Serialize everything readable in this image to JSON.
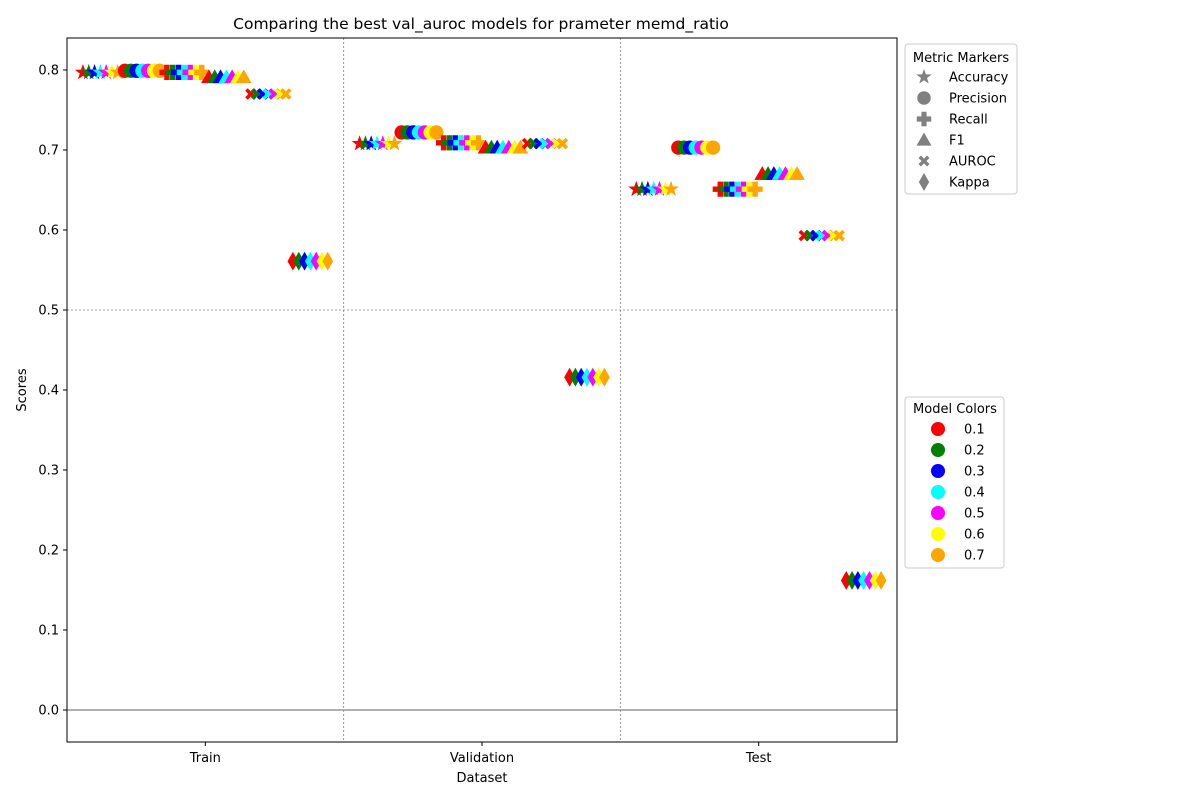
{
  "chart_data": {
    "type": "scatter",
    "title": "Comparing the best val_auroc models for prameter memd_ratio",
    "xlabel": "Dataset",
    "ylabel": "Scores",
    "categories": [
      "Train",
      "Validation",
      "Test"
    ],
    "ylim": [
      -0.04,
      0.84
    ],
    "yticks": [
      "0.0",
      "0.1",
      "0.2",
      "0.3",
      "0.4",
      "0.5",
      "0.6",
      "0.7",
      "0.8"
    ],
    "reference_lines": [
      0.5,
      0.0
    ],
    "metrics": [
      {
        "name": "Accuracy",
        "marker": "star",
        "values": {
          "Train": 0.797,
          "Validation": 0.708,
          "Test": 0.651
        }
      },
      {
        "name": "Precision",
        "marker": "circle",
        "values": {
          "Train": 0.799,
          "Validation": 0.722,
          "Test": 0.703
        }
      },
      {
        "name": "Recall",
        "marker": "plus",
        "values": {
          "Train": 0.797,
          "Validation": 0.709,
          "Test": 0.651
        }
      },
      {
        "name": "F1",
        "marker": "triangle",
        "values": {
          "Train": 0.791,
          "Validation": 0.703,
          "Test": 0.67
        }
      },
      {
        "name": "AUROC",
        "marker": "x",
        "values": {
          "Train": 0.77,
          "Validation": 0.708,
          "Test": 0.593
        }
      },
      {
        "name": "Kappa",
        "marker": "diamond",
        "values": {
          "Train": 0.561,
          "Validation": 0.416,
          "Test": 0.162
        }
      }
    ],
    "models": [
      {
        "name": "0.1",
        "color": "#ff0000"
      },
      {
        "name": "0.2",
        "color": "#008000"
      },
      {
        "name": "0.3",
        "color": "#0000ff"
      },
      {
        "name": "0.4",
        "color": "#00ffff"
      },
      {
        "name": "0.5",
        "color": "#ff00ff"
      },
      {
        "name": "0.6",
        "color": "#ffff00"
      },
      {
        "name": "0.7",
        "color": "#ffa500"
      }
    ],
    "legends": {
      "metric_title": "Metric Markers",
      "model_title": "Model Colors",
      "placement": "right, outside plot"
    },
    "grid": "dotted vertical separators between datasets and dotted line at 0.5"
  }
}
